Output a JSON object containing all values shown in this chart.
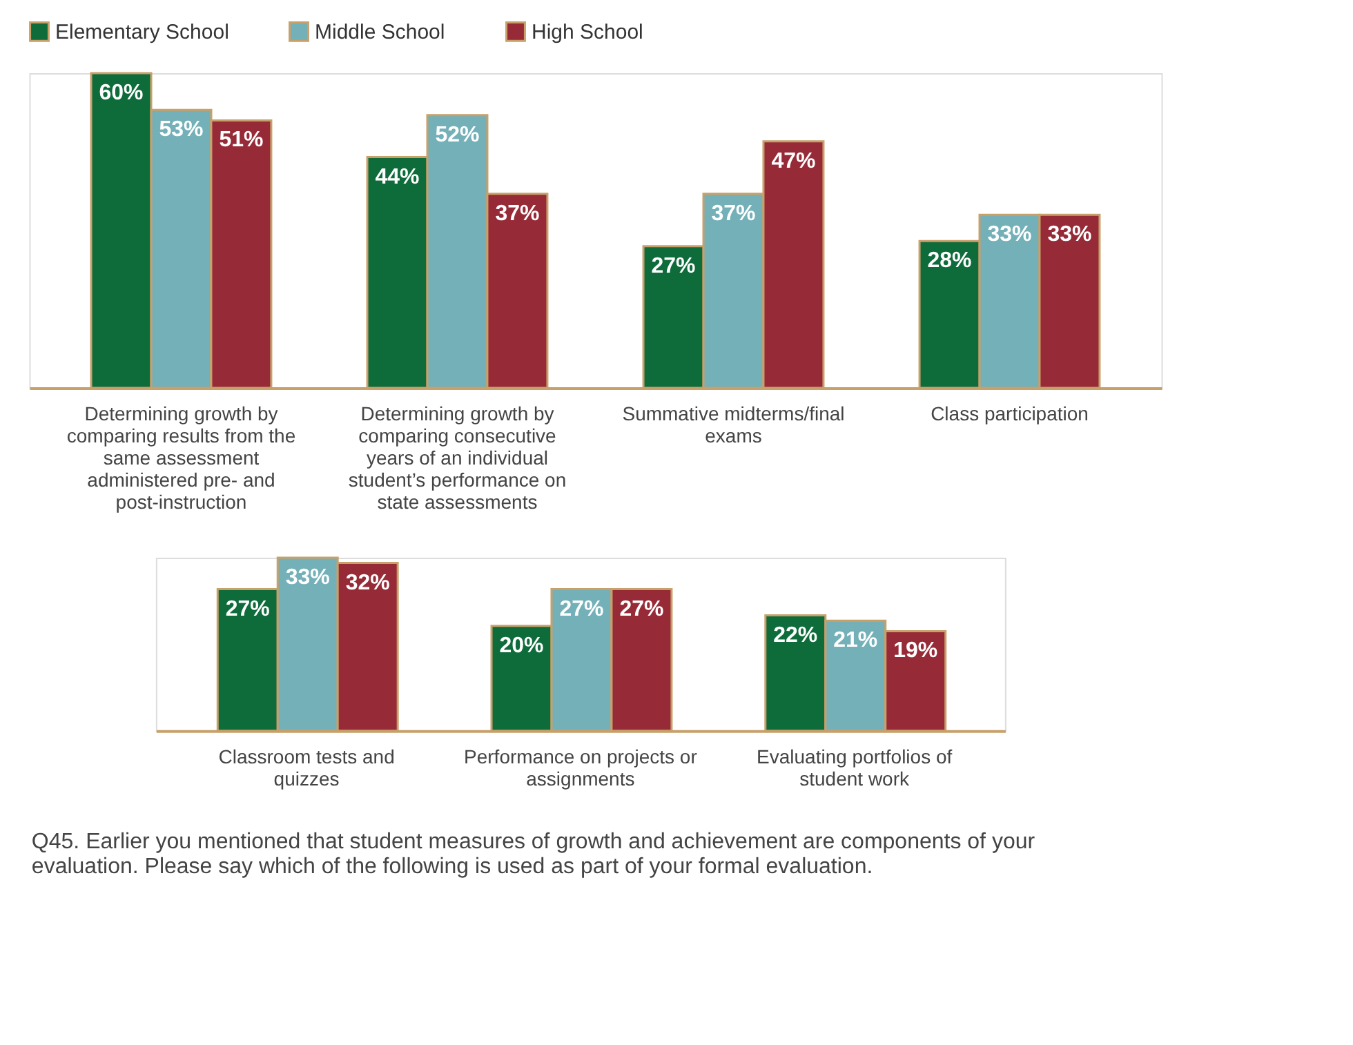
{
  "chart_data": [
    {
      "type": "bar",
      "legend": "top",
      "categories": [
        "Determining growth by comparing results from the same assessment administered pre- and post-instruction",
        "Determining growth by comparing consecutive years of an individual student’s performance on state assessments",
        "Summative midterms/final exams",
        "Class participation"
      ],
      "series": [
        {
          "name": "Elementary School",
          "color": "#0e6b3a",
          "values": [
            60,
            44,
            27,
            28
          ],
          "value_labels": [
            "60%",
            "44%",
            "27%",
            "28%"
          ]
        },
        {
          "name": "Middle School",
          "color": "#74b0b8",
          "values": [
            53,
            52,
            37,
            33
          ],
          "value_labels": [
            "53%",
            "52%",
            "37%",
            "33%"
          ]
        },
        {
          "name": "High School",
          "color": "#962a37",
          "values": [
            51,
            37,
            47,
            33
          ],
          "value_labels": [
            "51%",
            "37%",
            "47%",
            "33%"
          ]
        }
      ]
    },
    {
      "type": "bar",
      "categories": [
        "Classroom tests and quizzes",
        "Performance on projects or assignments",
        "Evaluating portfolios of student work"
      ],
      "series": [
        {
          "name": "Elementary School",
          "color": "#0e6b3a",
          "values": [
            27,
            20,
            22
          ],
          "value_labels": [
            "27%",
            "20%",
            "22%"
          ]
        },
        {
          "name": "Middle School",
          "color": "#74b0b8",
          "values": [
            33,
            27,
            21
          ],
          "value_labels": [
            "33%",
            "27%",
            "21%"
          ]
        },
        {
          "name": "High School",
          "color": "#962a37",
          "values": [
            32,
            27,
            19
          ],
          "value_labels": [
            "32%",
            "27%",
            "19%"
          ]
        }
      ],
      "annotations": [
        "Q45. Earlier you mentioned that student measures of growth and achievement are components of your evaluation. Please say which of the following is used as part of your formal evaluation."
      ]
    }
  ]
}
